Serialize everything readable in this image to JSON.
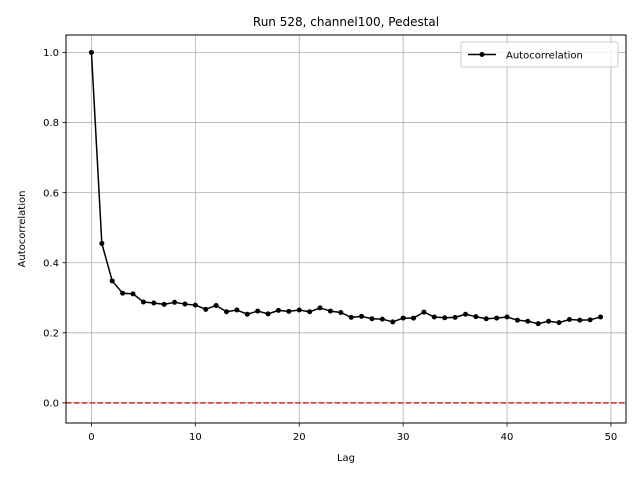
{
  "chart_data": {
    "type": "line",
    "title": "Run 528, channel100, Pedestal",
    "xlabel": "Lag",
    "ylabel": "Autocorrelation",
    "xlim": [
      -2.45,
      51.45
    ],
    "ylim": [
      -0.0575,
      1.05
    ],
    "xticks": [
      0,
      10,
      20,
      30,
      40,
      50
    ],
    "xtick_labels": [
      "0",
      "10",
      "20",
      "30",
      "40",
      "50"
    ],
    "yticks": [
      0.0,
      0.2,
      0.4,
      0.6,
      0.8,
      1.0
    ],
    "ytick_labels": [
      "0.0",
      "0.2",
      "0.4",
      "0.6",
      "0.8",
      "1.0"
    ],
    "grid": true,
    "legend_position": "top-right",
    "reference_line": {
      "y": 0.0,
      "color": "#d62728",
      "style": "dashed"
    },
    "series": [
      {
        "name": "Autocorrelation",
        "color": "#000000",
        "marker": "circle",
        "x": [
          0,
          1,
          2,
          3,
          4,
          5,
          6,
          7,
          8,
          9,
          10,
          11,
          12,
          13,
          14,
          15,
          16,
          17,
          18,
          19,
          20,
          21,
          22,
          23,
          24,
          25,
          26,
          27,
          28,
          29,
          30,
          31,
          32,
          33,
          34,
          35,
          36,
          37,
          38,
          39,
          40,
          41,
          42,
          43,
          44,
          45,
          46,
          47,
          48,
          49
        ],
        "y": [
          1.0,
          0.455,
          0.348,
          0.313,
          0.311,
          0.288,
          0.285,
          0.281,
          0.287,
          0.282,
          0.279,
          0.267,
          0.278,
          0.26,
          0.265,
          0.253,
          0.262,
          0.254,
          0.264,
          0.261,
          0.265,
          0.26,
          0.271,
          0.262,
          0.258,
          0.244,
          0.247,
          0.24,
          0.239,
          0.231,
          0.242,
          0.242,
          0.259,
          0.245,
          0.243,
          0.244,
          0.253,
          0.246,
          0.24,
          0.242,
          0.245,
          0.236,
          0.233,
          0.226,
          0.233,
          0.229,
          0.238,
          0.236,
          0.237,
          0.245
        ]
      }
    ]
  }
}
